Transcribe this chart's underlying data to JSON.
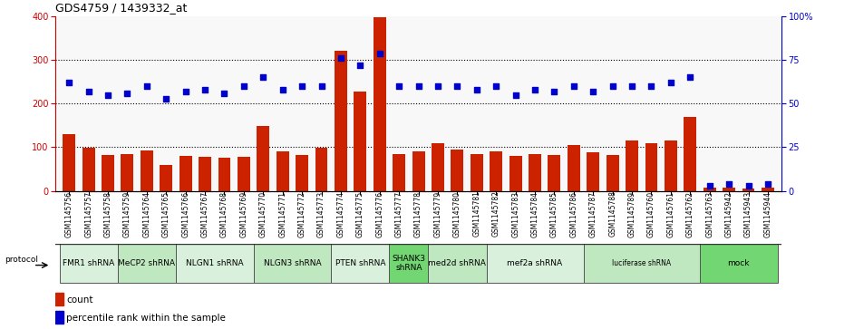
{
  "title": "GDS4759 / 1439332_at",
  "samples": [
    "GSM1145756",
    "GSM1145757",
    "GSM1145758",
    "GSM1145759",
    "GSM1145764",
    "GSM1145765",
    "GSM1145766",
    "GSM1145767",
    "GSM1145768",
    "GSM1145769",
    "GSM1145770",
    "GSM1145771",
    "GSM1145772",
    "GSM1145773",
    "GSM1145774",
    "GSM1145775",
    "GSM1145776",
    "GSM1145777",
    "GSM1145778",
    "GSM1145779",
    "GSM1145780",
    "GSM1145781",
    "GSM1145782",
    "GSM1145783",
    "GSM1145784",
    "GSM1145785",
    "GSM1145786",
    "GSM1145787",
    "GSM1145788",
    "GSM1145789",
    "GSM1145760",
    "GSM1145761",
    "GSM1145762",
    "GSM1145763",
    "GSM1145942",
    "GSM1145943",
    "GSM1145944"
  ],
  "counts": [
    130,
    98,
    82,
    84,
    92,
    60,
    80,
    78,
    75,
    78,
    148,
    90,
    83,
    98,
    322,
    228,
    398,
    84,
    90,
    110,
    95,
    85,
    90,
    80,
    85,
    82,
    105,
    88,
    82,
    115,
    110,
    115,
    170,
    8,
    8,
    5,
    8
  ],
  "percentiles": [
    62,
    57,
    55,
    56,
    60,
    53,
    57,
    58,
    56,
    60,
    65,
    58,
    60,
    60,
    76,
    72,
    79,
    60,
    60,
    60,
    60,
    58,
    60,
    55,
    58,
    57,
    60,
    57,
    60,
    60,
    60,
    62,
    65,
    3,
    4,
    3,
    4
  ],
  "groups": [
    {
      "label": "FMR1 shRNA",
      "start": 0,
      "end": 3,
      "color": "#d8f0dc"
    },
    {
      "label": "MeCP2 shRNA",
      "start": 3,
      "end": 6,
      "color": "#c0e8c0"
    },
    {
      "label": "NLGN1 shRNA",
      "start": 6,
      "end": 10,
      "color": "#d8f0dc"
    },
    {
      "label": "NLGN3 shRNA",
      "start": 10,
      "end": 14,
      "color": "#c0e8c0"
    },
    {
      "label": "PTEN shRNA",
      "start": 14,
      "end": 17,
      "color": "#d8f0dc"
    },
    {
      "label": "SHANK3\nshRNA",
      "start": 17,
      "end": 19,
      "color": "#72d672"
    },
    {
      "label": "med2d shRNA",
      "start": 19,
      "end": 22,
      "color": "#c0e8c0"
    },
    {
      "label": "mef2a shRNA",
      "start": 22,
      "end": 27,
      "color": "#d8f0dc"
    },
    {
      "label": "luciferase shRNA",
      "start": 27,
      "end": 33,
      "color": "#c0e8c0"
    },
    {
      "label": "mock",
      "start": 33,
      "end": 37,
      "color": "#72d672"
    }
  ],
  "bar_color": "#cc2200",
  "dot_color": "#0000cc",
  "ylim_left": [
    0,
    400
  ],
  "ylim_right": [
    0,
    100
  ],
  "yticks_left": [
    0,
    100,
    200,
    300,
    400
  ],
  "yticks_right": [
    0,
    25,
    50,
    75,
    100
  ],
  "ytick_right_labels": [
    "0",
    "25",
    "50",
    "75",
    "100%"
  ],
  "hlines": [
    100,
    200,
    300
  ],
  "plot_bg": "#f8f8f8"
}
